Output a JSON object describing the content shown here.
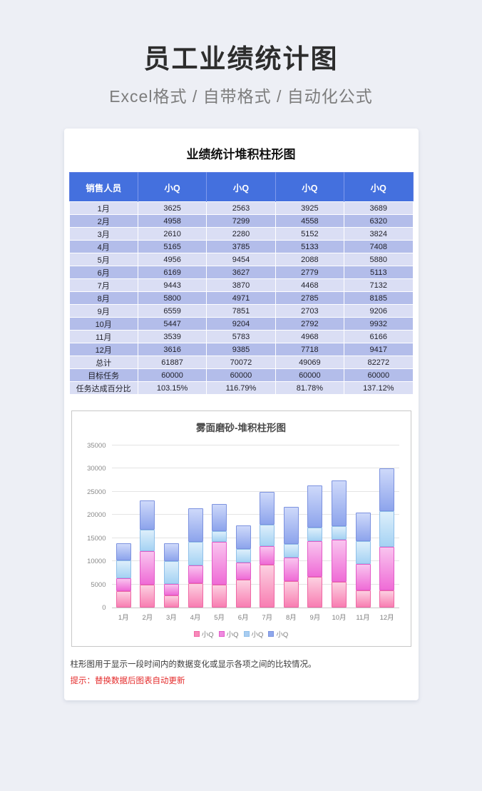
{
  "page": {
    "title": "员工业绩统计图",
    "subtitle": "Excel格式 / 自带格式 / 自动化公式"
  },
  "card": {
    "table_title": "业绩统计堆积柱形图",
    "table": {
      "headers": [
        "销售人员",
        "小Q",
        "小Q",
        "小Q",
        "小Q"
      ],
      "rows": [
        [
          "1月",
          "3625",
          "2563",
          "3925",
          "3689"
        ],
        [
          "2月",
          "4958",
          "7299",
          "4558",
          "6320"
        ],
        [
          "3月",
          "2610",
          "2280",
          "5152",
          "3824"
        ],
        [
          "4月",
          "5165",
          "3785",
          "5133",
          "7408"
        ],
        [
          "5月",
          "4956",
          "9454",
          "2088",
          "5880"
        ],
        [
          "6月",
          "6169",
          "3627",
          "2779",
          "5113"
        ],
        [
          "7月",
          "9443",
          "3870",
          "4468",
          "7132"
        ],
        [
          "8月",
          "5800",
          "4971",
          "2785",
          "8185"
        ],
        [
          "9月",
          "6559",
          "7851",
          "2703",
          "9206"
        ],
        [
          "10月",
          "5447",
          "9204",
          "2792",
          "9932"
        ],
        [
          "11月",
          "3539",
          "5783",
          "4968",
          "6166"
        ],
        [
          "12月",
          "3616",
          "9385",
          "7718",
          "9417"
        ],
        [
          "总计",
          "61887",
          "70072",
          "49069",
          "82272"
        ],
        [
          "目标任务",
          "60000",
          "60000",
          "60000",
          "60000"
        ],
        [
          "任务达成百分比",
          "103.15%",
          "116.79%",
          "81.78%",
          "137.12%"
        ]
      ]
    },
    "notes": {
      "description": "柱形图用于显示一段时间内的数据变化或显示各项之间的比较情况。",
      "tip": "提示：替换数据后图表自动更新"
    }
  },
  "chart_data": {
    "type": "bar",
    "stacked": true,
    "title": "雾面磨砂-堆积柱形图",
    "categories": [
      "1月",
      "2月",
      "3月",
      "4月",
      "5月",
      "6月",
      "7月",
      "8月",
      "9月",
      "10月",
      "11月",
      "12月"
    ],
    "series": [
      {
        "name": "小Q",
        "values": [
          3625,
          4958,
          2610,
          5165,
          4956,
          6169,
          9443,
          5800,
          6559,
          5447,
          3539,
          3616
        ],
        "color_light": "#fcd0e1",
        "color_dark": "#f87eb2",
        "border": "#ef67a5",
        "swatch": "#f88ab9"
      },
      {
        "name": "小Q",
        "values": [
          2563,
          7299,
          2280,
          3785,
          9454,
          3627,
          3870,
          4971,
          7851,
          9204,
          5783,
          9385
        ],
        "color_light": "#f9c4ef",
        "color_dark": "#ef6cd6",
        "border": "#e25cc8",
        "swatch": "#ef8ae0"
      },
      {
        "name": "小Q",
        "values": [
          3925,
          4558,
          5152,
          5133,
          2088,
          2779,
          4468,
          2785,
          2703,
          2792,
          4968,
          7718
        ],
        "color_light": "#ddeffb",
        "color_dark": "#a5d2f3",
        "border": "#8fbfe9",
        "swatch": "#a9cdf1"
      },
      {
        "name": "小Q",
        "values": [
          3689,
          6320,
          3824,
          7408,
          5880,
          5113,
          7132,
          8185,
          9206,
          9932,
          6166,
          9417
        ],
        "color_light": "#ced9fa",
        "color_dark": "#8da4ec",
        "border": "#7c92df",
        "swatch": "#8fa8ec"
      }
    ],
    "xlabel": "",
    "ylabel": "",
    "ylim": [
      0,
      35000
    ],
    "ytick_step": 5000,
    "grid": true,
    "legend_position": "bottom"
  },
  "colors": {
    "header_blue": "#4470de",
    "row_light": "#dadef4",
    "row_dark": "#b3bdea",
    "tip_red": "#e42b2b",
    "background": "#edeff5"
  }
}
